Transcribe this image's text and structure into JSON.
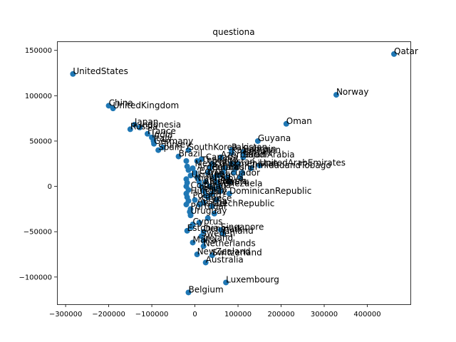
{
  "chart_data": {
    "type": "scatter",
    "title": "questiona",
    "xlabel": "",
    "ylabel": "",
    "xlim": [
      -320000,
      500000
    ],
    "ylim": [
      -130000,
      160000
    ],
    "xticks": [
      -300000,
      -200000,
      -100000,
      0,
      100000,
      200000,
      300000,
      400000
    ],
    "xtick_labels": [
      "−300000",
      "−200000",
      "−100000",
      "0",
      "100000",
      "200000",
      "300000",
      "400000"
    ],
    "yticks": [
      -100000,
      -50000,
      0,
      50000,
      100000,
      150000
    ],
    "ytick_labels": [
      "−100000",
      "−50000",
      "0",
      "50000",
      "100000",
      "150000"
    ],
    "grid": false,
    "point_color": "#1f77b4",
    "labeled_points": [
      {
        "label": "Qatar",
        "x": 462000,
        "y": 146000
      },
      {
        "label": "UnitedStates",
        "x": -283000,
        "y": 124000
      },
      {
        "label": "Norway",
        "x": 328000,
        "y": 101000
      },
      {
        "label": "China",
        "x": -200000,
        "y": 89000
      },
      {
        "label": "UnitedKingdom",
        "x": -190000,
        "y": 86000
      },
      {
        "label": "Oman",
        "x": 212000,
        "y": 69000
      },
      {
        "label": "Japan",
        "x": -140000,
        "y": 68000
      },
      {
        "label": "Indonesia",
        "x": -128000,
        "y": 65000
      },
      {
        "label": "Russia",
        "x": -150000,
        "y": 63000
      },
      {
        "label": "France",
        "x": -110000,
        "y": 58000
      },
      {
        "label": "India",
        "x": -100000,
        "y": 54000
      },
      {
        "label": "Italy",
        "x": -96000,
        "y": 50000
      },
      {
        "label": "Germany",
        "x": -95000,
        "y": 47000
      },
      {
        "label": "Guyana",
        "x": 146000,
        "y": 50000
      },
      {
        "label": "Turkey",
        "x": -75000,
        "y": 43000
      },
      {
        "label": "Spain",
        "x": -85000,
        "y": 40000
      },
      {
        "label": "SouthKorea",
        "x": -15000,
        "y": 40000
      },
      {
        "label": "Pakistan",
        "x": 85000,
        "y": 40000
      },
      {
        "label": "Kazakhstan",
        "x": 85000,
        "y": 37000
      },
      {
        "label": "Bahrain",
        "x": 112000,
        "y": 38000
      },
      {
        "label": "Kuwait",
        "x": 112000,
        "y": 35000
      },
      {
        "label": "SaudiArabia",
        "x": 112000,
        "y": 32000
      },
      {
        "label": "Brazil",
        "x": -38000,
        "y": 33000
      },
      {
        "label": "Azerbaijan",
        "x": 60000,
        "y": 32000
      },
      {
        "label": "UnitedArabEmirates",
        "x": 150000,
        "y": 23000
      },
      {
        "label": "TrinidadandTobago",
        "x": 130000,
        "y": 20000
      },
      {
        "label": "DominicanRepublic",
        "x": 80000,
        "y": -8000
      },
      {
        "label": "CzechRepublic",
        "x": 40000,
        "y": -22000
      },
      {
        "label": "Portugal",
        "x": -10000,
        "y": -25000
      },
      {
        "label": "Uruguay",
        "x": -10000,
        "y": -30000
      },
      {
        "label": "Cyprus",
        "x": -5000,
        "y": -42000
      },
      {
        "label": "Singapore",
        "x": 60000,
        "y": -48000
      },
      {
        "label": "Denmark",
        "x": 20000,
        "y": -50000
      },
      {
        "label": "Finland",
        "x": 65000,
        "y": -52000
      },
      {
        "label": "Estonia",
        "x": -18000,
        "y": -49000
      },
      {
        "label": "Sweden",
        "x": 15000,
        "y": -55000
      },
      {
        "label": "Ireland",
        "x": 20000,
        "y": -60000
      },
      {
        "label": "Malta",
        "x": -5000,
        "y": -62000
      },
      {
        "label": "Netherlands",
        "x": 20000,
        "y": -66000
      },
      {
        "label": "NewZealand",
        "x": 5000,
        "y": -75000
      },
      {
        "label": "Switzerland",
        "x": 40000,
        "y": -76000
      },
      {
        "label": "Australia",
        "x": 25000,
        "y": -84000
      },
      {
        "label": "Luxembourg",
        "x": 72000,
        "y": -106000
      },
      {
        "label": "Belgium",
        "x": -15000,
        "y": -117000
      }
    ],
    "cluster_points": [
      {
        "x": -20000,
        "y": 28000
      },
      {
        "x": -18000,
        "y": 22000
      },
      {
        "x": -15000,
        "y": 18000
      },
      {
        "x": -10000,
        "y": 12000
      },
      {
        "x": -20000,
        "y": 8000
      },
      {
        "x": -18000,
        "y": 4000
      },
      {
        "x": -20000,
        "y": 0
      },
      {
        "x": -15000,
        "y": -4000
      },
      {
        "x": -20000,
        "y": -8000
      },
      {
        "x": -18000,
        "y": -12000
      },
      {
        "x": -15000,
        "y": -16000
      },
      {
        "x": -20000,
        "y": -20000
      },
      {
        "x": -12000,
        "y": -28000
      },
      {
        "x": -10000,
        "y": -32000
      },
      {
        "x": -5000,
        "y": 20000
      },
      {
        "x": 0,
        "y": 15000
      },
      {
        "x": 5000,
        "y": 10000
      },
      {
        "x": 10000,
        "y": 5000
      },
      {
        "x": 15000,
        "y": 0
      },
      {
        "x": 20000,
        "y": -5000
      },
      {
        "x": 25000,
        "y": -10000
      },
      {
        "x": 30000,
        "y": 15000
      },
      {
        "x": 35000,
        "y": 20000
      },
      {
        "x": 40000,
        "y": 25000
      },
      {
        "x": 45000,
        "y": 10000
      },
      {
        "x": 50000,
        "y": 5000
      },
      {
        "x": 55000,
        "y": 0
      },
      {
        "x": 60000,
        "y": -5000
      },
      {
        "x": 65000,
        "y": 15000
      },
      {
        "x": 70000,
        "y": 20000
      },
      {
        "x": 75000,
        "y": 10000
      },
      {
        "x": 80000,
        "y": 5000
      },
      {
        "x": 85000,
        "y": 25000
      },
      {
        "x": 90000,
        "y": 15000
      },
      {
        "x": 95000,
        "y": 20000
      },
      {
        "x": 100000,
        "y": 25000
      },
      {
        "x": 105000,
        "y": 10000
      },
      {
        "x": 110000,
        "y": 15000
      },
      {
        "x": 0,
        "y": -15000
      },
      {
        "x": 10000,
        "y": -20000
      },
      {
        "x": 20000,
        "y": -18000
      },
      {
        "x": 30000,
        "y": -12000
      },
      {
        "x": 40000,
        "y": -8000
      },
      {
        "x": 50000,
        "y": -15000
      },
      {
        "x": 5000,
        "y": 28000
      },
      {
        "x": 15000,
        "y": 30000
      },
      {
        "x": 25000,
        "y": 5000
      },
      {
        "x": 35000,
        "y": 0
      },
      {
        "x": 45000,
        "y": -3000
      },
      {
        "x": 55000,
        "y": 12000
      },
      {
        "x": -8000,
        "y": -45000
      },
      {
        "x": 10000,
        "y": -40000
      },
      {
        "x": 30000,
        "y": -35000
      },
      {
        "x": 45000,
        "y": -30000
      }
    ],
    "cluster_labels": [
      {
        "label": "Canada",
        "x": 25000,
        "y": 29000
      },
      {
        "label": "Mexico",
        "x": 0,
        "y": 22000
      },
      {
        "label": "Argentina",
        "x": 5000,
        "y": 18000
      },
      {
        "label": "Egypt",
        "x": 10000,
        "y": 14000
      },
      {
        "label": "Iran",
        "x": 30000,
        "y": 12000
      },
      {
        "label": "Iraq",
        "x": 45000,
        "y": 9000
      },
      {
        "label": "Nigeria",
        "x": 0,
        "y": 6000
      },
      {
        "label": "Algeria",
        "x": 20000,
        "y": 3000
      },
      {
        "label": "Libya",
        "x": 60000,
        "y": 6000
      },
      {
        "label": "Venezuela",
        "x": 55000,
        "y": 0
      },
      {
        "label": "Colombia",
        "x": -10000,
        "y": -2000
      },
      {
        "label": "Peru",
        "x": 10000,
        "y": -6000
      },
      {
        "label": "Chile",
        "x": 25000,
        "y": -9000
      },
      {
        "label": "Poland",
        "x": -5000,
        "y": -13000
      },
      {
        "label": "Greece",
        "x": 15000,
        "y": -16000
      },
      {
        "label": "Austria",
        "x": 5000,
        "y": -19000
      },
      {
        "label": "Israel",
        "x": 20000,
        "y": -22000
      },
      {
        "label": "Hungary",
        "x": -10000,
        "y": -8000
      },
      {
        "label": "Ecuador",
        "x": 70000,
        "y": 12000
      },
      {
        "label": "Belarus",
        "x": 40000,
        "y": 18000
      },
      {
        "label": "Turkmenistan",
        "x": 60000,
        "y": 22000
      },
      {
        "label": "Uzbekistan",
        "x": 30000,
        "y": 24000
      },
      {
        "label": "Ukraine",
        "x": -8000,
        "y": 10000
      },
      {
        "label": "Thailand",
        "x": 15000,
        "y": 26000
      },
      {
        "label": "Malaysia",
        "x": 35000,
        "y": 3000
      },
      {
        "label": "Brunei",
        "x": 80000,
        "y": 18000
      },
      {
        "label": "Nauru",
        "x": 65000,
        "y": 2000
      },
      {
        "label": "Palau",
        "x": 20000,
        "y": -3000
      }
    ]
  }
}
